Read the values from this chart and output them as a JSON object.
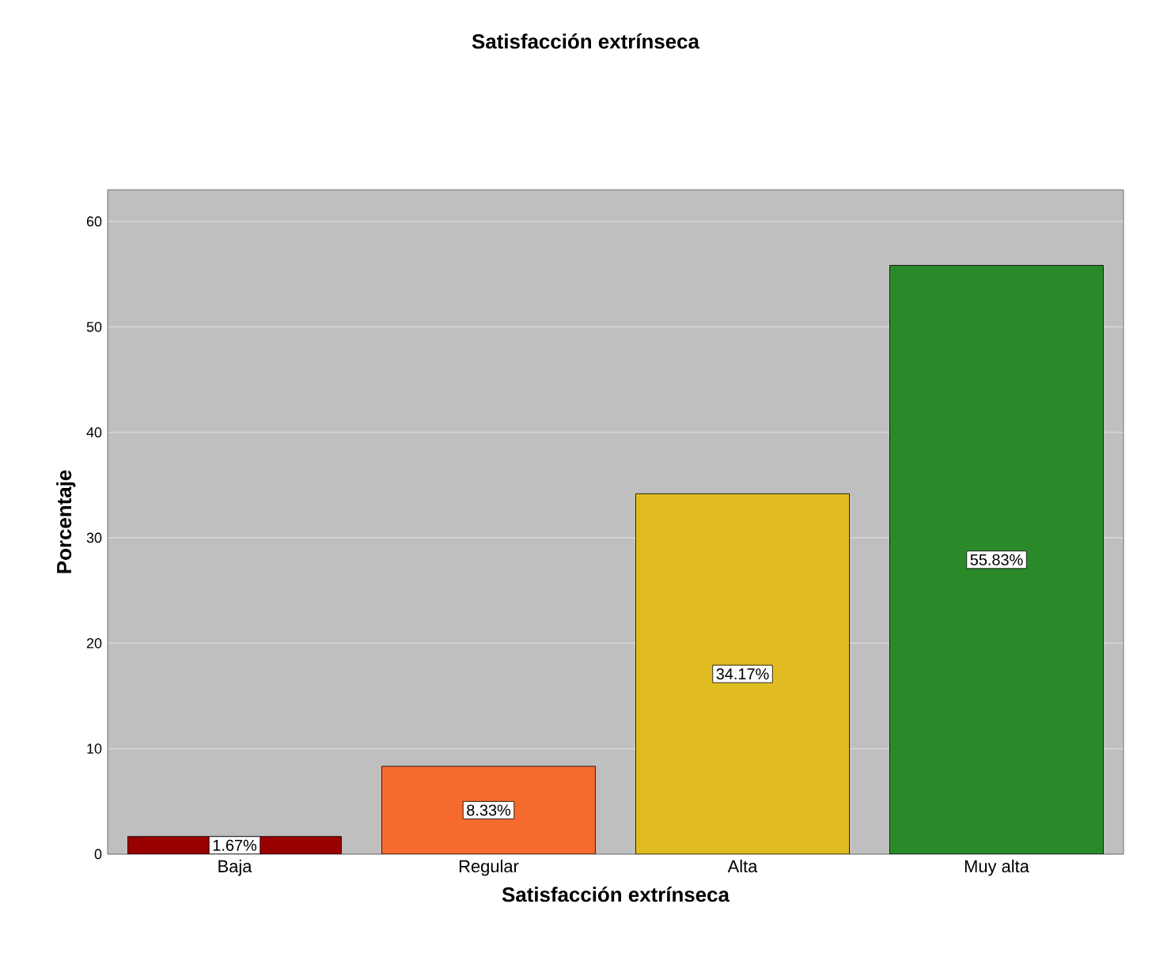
{
  "chart_data": {
    "type": "bar",
    "title": "Satisfacción extrínseca",
    "xlabel": "Satisfacción extrínseca",
    "ylabel": "Porcentaje",
    "categories": [
      "Baja",
      "Regular",
      "Alta",
      "Muy alta"
    ],
    "values": [
      1.67,
      8.33,
      34.17,
      55.83
    ],
    "colors": [
      "#990000",
      "#f46b2d",
      "#e0bc22",
      "#2a8a2a"
    ],
    "value_labels": [
      "1.67%",
      "8.33%",
      "34.17%",
      "55.83%"
    ],
    "ylim": [
      0,
      63
    ],
    "yticks": [
      0,
      10,
      20,
      30,
      40,
      50,
      60
    ],
    "grid": "y"
  }
}
